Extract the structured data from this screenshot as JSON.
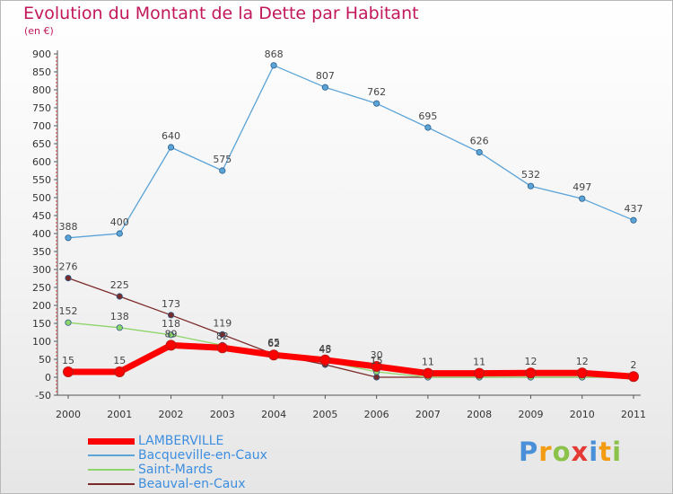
{
  "title": "Evolution du Montant de la Dette par Habitant",
  "unit": "(en €)",
  "logo": {
    "text": "Proxiti",
    "letters": [
      {
        "ch": "P",
        "color": "#4a90d9"
      },
      {
        "ch": "r",
        "color": "#f39c12"
      },
      {
        "ch": "o",
        "color": "#8bc34a"
      },
      {
        "ch": "x",
        "color": "#e53935"
      },
      {
        "ch": "i",
        "color": "#4a90d9"
      },
      {
        "ch": "t",
        "color": "#f39c12"
      },
      {
        "ch": "i",
        "color": "#8bc34a"
      }
    ]
  },
  "chart_data": {
    "type": "line",
    "title": "Evolution du Montant de la Dette par Habitant",
    "ylabel": "(en €)",
    "x": [
      "2000",
      "2001",
      "2002",
      "2003",
      "2004",
      "2005",
      "2006",
      "2007",
      "2008",
      "2009",
      "2010",
      "2011"
    ],
    "ylim": [
      -50,
      900
    ],
    "yticks": [
      -50,
      0,
      50,
      100,
      150,
      200,
      250,
      300,
      350,
      400,
      450,
      500,
      550,
      600,
      650,
      700,
      750,
      800,
      850,
      900
    ],
    "grid": false,
    "legend_position": "bottom-left",
    "series": [
      {
        "name": "LAMBERVILLE",
        "color": "#ff0000",
        "values": [
          15,
          15,
          89,
          82,
          62,
          48,
          30,
          11,
          11,
          12,
          12,
          2
        ],
        "labels": [
          "15",
          "15",
          "89",
          "82",
          "62",
          "48",
          "30",
          "11",
          "11",
          "12",
          "12",
          "2"
        ]
      },
      {
        "name": "Bacqueville-en-Caux",
        "color": "#5ba4d8",
        "values": [
          388,
          400,
          640,
          575,
          868,
          807,
          762,
          695,
          626,
          532,
          497,
          437
        ],
        "labels": [
          "388",
          "400",
          "640",
          "575",
          "868",
          "807",
          "762",
          "695",
          "626",
          "532",
          "497",
          "437"
        ]
      },
      {
        "name": "Saint-Mards",
        "color": "#8fd66a",
        "values": [
          152,
          138,
          118,
          89,
          65,
          45,
          15,
          0,
          0,
          0,
          0,
          0
        ],
        "labels": [
          "152",
          "138",
          "118",
          "",
          "65",
          "45",
          "15",
          "",
          "",
          "",
          "",
          ""
        ]
      },
      {
        "name": "Beauval-en-Caux",
        "color": "#7b2a2a",
        "values": [
          276,
          225,
          173,
          119,
          64,
          35,
          0,
          0,
          0,
          0,
          0,
          0
        ],
        "labels": [
          "276",
          "225",
          "173",
          "119",
          "",
          "",
          "",
          "",
          "",
          "",
          "",
          ""
        ]
      }
    ]
  }
}
